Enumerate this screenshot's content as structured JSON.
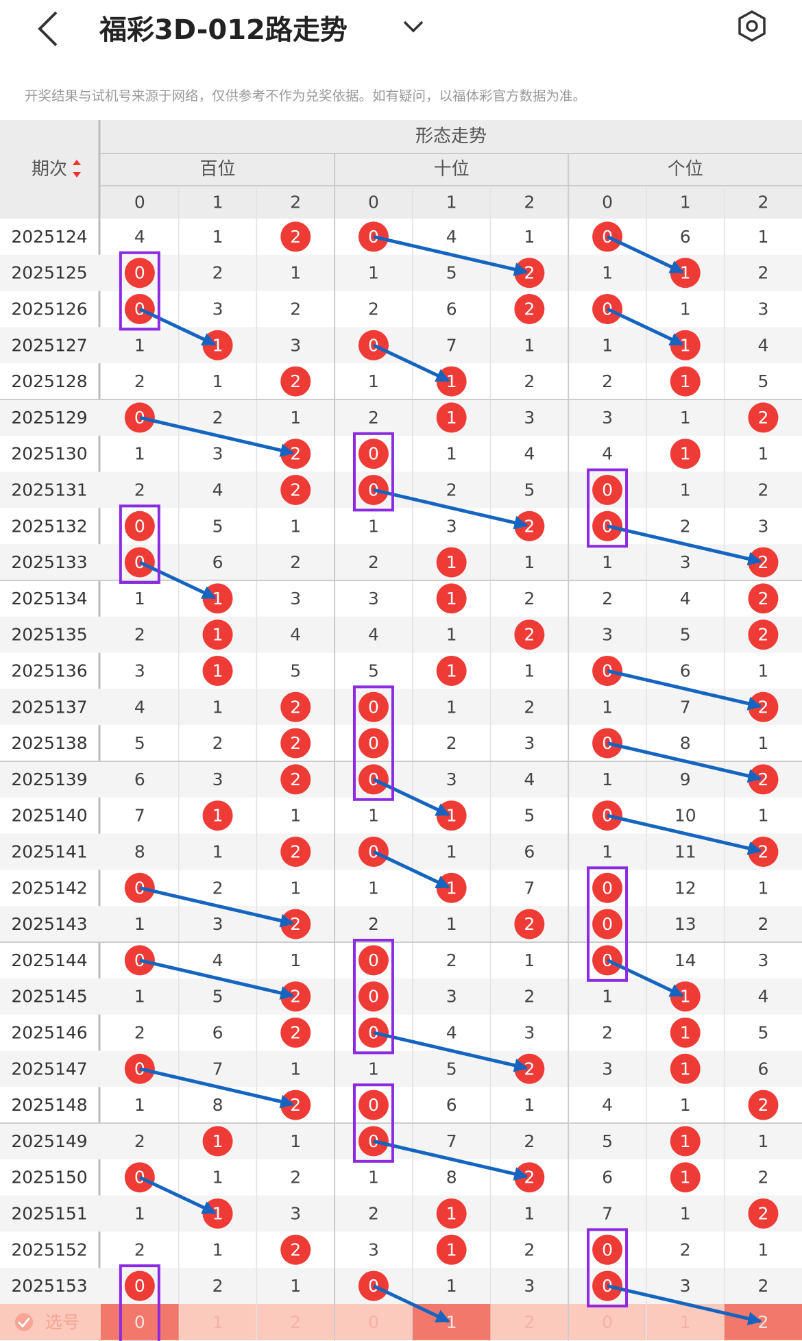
{
  "header": {
    "title": "福彩3D-012路走势",
    "notice": "开奖结果与试机号来源于网络，仅供参考不作为兑奖依据。如有疑问，以福体彩官方数据为准。"
  },
  "table": {
    "group_title": "形态走势",
    "period_label": "期次",
    "positions": [
      "百位",
      "十位",
      "个位"
    ],
    "digits": [
      0,
      1,
      2,
      0,
      1,
      2,
      0,
      1,
      2
    ],
    "rows": [
      {
        "period": "2025124",
        "cells": [
          4,
          1,
          2,
          0,
          4,
          1,
          0,
          6,
          1
        ],
        "hits": [
          2,
          3,
          6
        ]
      },
      {
        "period": "2025125",
        "cells": [
          0,
          2,
          1,
          1,
          5,
          2,
          1,
          1,
          2
        ],
        "hits": [
          0,
          5,
          7
        ]
      },
      {
        "period": "2025126",
        "cells": [
          0,
          3,
          2,
          2,
          6,
          2,
          0,
          1,
          3
        ],
        "hits": [
          0,
          5,
          6
        ]
      },
      {
        "period": "2025127",
        "cells": [
          1,
          1,
          3,
          0,
          7,
          1,
          1,
          1,
          4
        ],
        "hits": [
          1,
          3,
          7
        ]
      },
      {
        "period": "2025128",
        "cells": [
          2,
          1,
          2,
          1,
          1,
          2,
          2,
          1,
          5
        ],
        "hits": [
          2,
          4,
          7
        ]
      },
      {
        "period": "2025129",
        "cells": [
          0,
          2,
          1,
          2,
          1,
          3,
          3,
          1,
          2
        ],
        "hits": [
          0,
          4,
          8
        ]
      },
      {
        "period": "2025130",
        "cells": [
          1,
          3,
          2,
          0,
          1,
          4,
          4,
          1,
          1
        ],
        "hits": [
          2,
          3,
          7
        ]
      },
      {
        "period": "2025131",
        "cells": [
          2,
          4,
          2,
          0,
          2,
          5,
          0,
          1,
          2
        ],
        "hits": [
          2,
          3,
          6
        ]
      },
      {
        "period": "2025132",
        "cells": [
          0,
          5,
          1,
          1,
          3,
          2,
          0,
          2,
          3
        ],
        "hits": [
          0,
          5,
          6
        ]
      },
      {
        "period": "2025133",
        "cells": [
          0,
          6,
          2,
          2,
          1,
          1,
          1,
          3,
          2
        ],
        "hits": [
          0,
          4,
          8
        ]
      },
      {
        "period": "2025134",
        "cells": [
          1,
          1,
          3,
          3,
          1,
          2,
          2,
          4,
          2
        ],
        "hits": [
          1,
          4,
          8
        ]
      },
      {
        "period": "2025135",
        "cells": [
          2,
          1,
          4,
          4,
          1,
          2,
          3,
          5,
          2
        ],
        "hits": [
          1,
          5,
          8
        ]
      },
      {
        "period": "2025136",
        "cells": [
          3,
          1,
          5,
          5,
          1,
          1,
          0,
          6,
          1
        ],
        "hits": [
          1,
          4,
          6
        ]
      },
      {
        "period": "2025137",
        "cells": [
          4,
          1,
          2,
          0,
          1,
          2,
          1,
          7,
          2
        ],
        "hits": [
          2,
          3,
          8
        ]
      },
      {
        "period": "2025138",
        "cells": [
          5,
          2,
          2,
          0,
          2,
          3,
          0,
          8,
          1
        ],
        "hits": [
          2,
          3,
          6
        ]
      },
      {
        "period": "2025139",
        "cells": [
          6,
          3,
          2,
          0,
          3,
          4,
          1,
          9,
          2
        ],
        "hits": [
          2,
          3,
          8
        ]
      },
      {
        "period": "2025140",
        "cells": [
          7,
          1,
          1,
          1,
          1,
          5,
          0,
          10,
          1
        ],
        "hits": [
          1,
          4,
          6
        ]
      },
      {
        "period": "2025141",
        "cells": [
          8,
          1,
          2,
          0,
          1,
          6,
          1,
          11,
          2
        ],
        "hits": [
          2,
          3,
          8
        ]
      },
      {
        "period": "2025142",
        "cells": [
          0,
          2,
          1,
          1,
          1,
          7,
          0,
          12,
          1
        ],
        "hits": [
          0,
          4,
          6
        ]
      },
      {
        "period": "2025143",
        "cells": [
          1,
          3,
          2,
          2,
          1,
          2,
          0,
          13,
          2
        ],
        "hits": [
          2,
          5,
          6
        ]
      },
      {
        "period": "2025144",
        "cells": [
          0,
          4,
          1,
          0,
          2,
          1,
          0,
          14,
          3
        ],
        "hits": [
          0,
          3,
          6
        ]
      },
      {
        "period": "2025145",
        "cells": [
          1,
          5,
          2,
          0,
          3,
          2,
          1,
          1,
          4
        ],
        "hits": [
          2,
          3,
          7
        ]
      },
      {
        "period": "2025146",
        "cells": [
          2,
          6,
          2,
          0,
          4,
          3,
          2,
          1,
          5
        ],
        "hits": [
          2,
          3,
          7
        ]
      },
      {
        "period": "2025147",
        "cells": [
          0,
          7,
          1,
          1,
          5,
          2,
          3,
          1,
          6
        ],
        "hits": [
          0,
          5,
          7
        ]
      },
      {
        "period": "2025148",
        "cells": [
          1,
          8,
          2,
          0,
          6,
          1,
          4,
          1,
          2
        ],
        "hits": [
          2,
          3,
          8
        ]
      },
      {
        "period": "2025149",
        "cells": [
          2,
          1,
          1,
          0,
          7,
          2,
          5,
          1,
          1
        ],
        "hits": [
          1,
          3,
          7
        ]
      },
      {
        "period": "2025150",
        "cells": [
          0,
          1,
          2,
          1,
          8,
          2,
          6,
          1,
          2
        ],
        "hits": [
          0,
          5,
          7
        ]
      },
      {
        "period": "2025151",
        "cells": [
          1,
          1,
          3,
          2,
          1,
          1,
          7,
          1,
          2
        ],
        "hits": [
          1,
          4,
          8
        ]
      },
      {
        "period": "2025152",
        "cells": [
          2,
          1,
          2,
          3,
          1,
          2,
          0,
          2,
          1
        ],
        "hits": [
          2,
          4,
          6
        ]
      },
      {
        "period": "2025153",
        "cells": [
          0,
          2,
          1,
          0,
          1,
          3,
          0,
          3,
          2
        ],
        "hits": [
          0,
          3,
          6
        ]
      }
    ],
    "select": {
      "label": "选号",
      "values": [
        0,
        1,
        2,
        0,
        1,
        2,
        0,
        1,
        2
      ],
      "chosen": [
        0,
        4,
        8
      ]
    }
  }
}
